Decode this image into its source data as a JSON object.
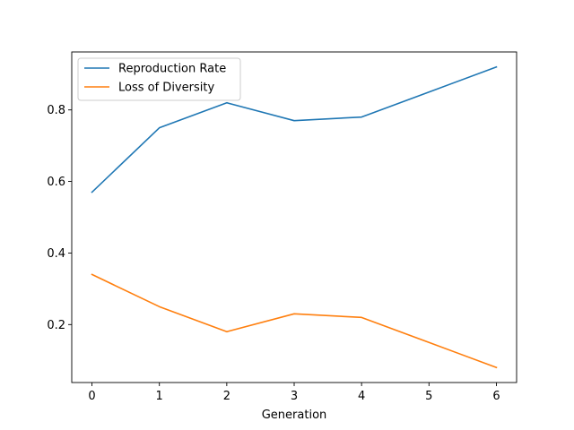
{
  "chart_data": {
    "type": "line",
    "title": "",
    "xlabel": "Generation",
    "ylabel": "",
    "x": [
      0,
      1,
      2,
      3,
      4,
      5,
      6
    ],
    "x_ticks": [
      "0",
      "1",
      "2",
      "3",
      "4",
      "5",
      "6"
    ],
    "y_ticks": [
      "0.2",
      "0.4",
      "0.6",
      "0.8"
    ],
    "xlim": [
      -0.3,
      6.3
    ],
    "ylim": [
      0.038,
      0.962
    ],
    "grid": false,
    "legend_position": "top-left",
    "series": [
      {
        "name": "Reproduction Rate",
        "color": "#1f77b4",
        "values": [
          0.57,
          0.75,
          0.82,
          0.77,
          0.78,
          0.85,
          0.92
        ]
      },
      {
        "name": "Loss of Diversity",
        "color": "#ff7f0e",
        "values": [
          0.34,
          0.25,
          0.18,
          0.23,
          0.22,
          0.15,
          0.08
        ]
      }
    ]
  }
}
